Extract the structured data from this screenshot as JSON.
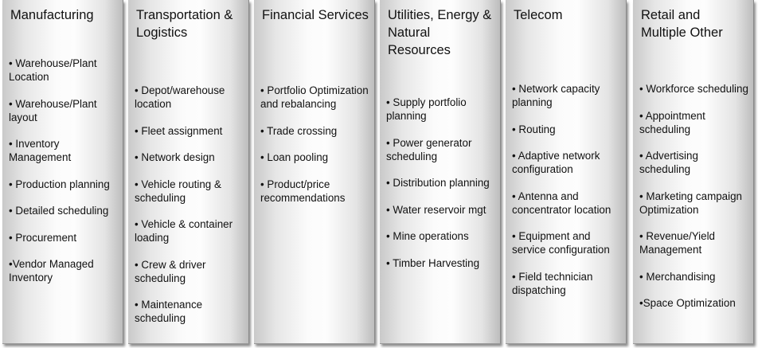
{
  "columns": [
    {
      "title": "Manufacturing",
      "items": [
        "• Warehouse/Plant Location",
        "• Warehouse/Plant layout",
        "• Inventory Management",
        "• Production planning",
        "• Detailed scheduling",
        "•  Procurement",
        "•Vendor Managed Inventory"
      ]
    },
    {
      "title": "Transportation & Logistics",
      "items": [
        "• Depot/warehouse location",
        "• Fleet assignment",
        "• Network design",
        "• Vehicle  routing & scheduling",
        "• Vehicle & container loading",
        "• Crew & driver scheduling",
        "• Maintenance scheduling"
      ]
    },
    {
      "title": "Financial Services",
      "items": [
        "• Portfolio Optimization and rebalancing",
        "• Trade crossing",
        "• Loan pooling",
        "• Product/price recommendations"
      ]
    },
    {
      "title": "Utilities, Energy & Natural Resources",
      "items": [
        "• Supply portfolio planning",
        "• Power generator scheduling",
        "• Distribution planning",
        "• Water reservoir mgt",
        "• Mine operations",
        "• Timber Harvesting"
      ]
    },
    {
      "title": "Telecom",
      "items": [
        "• Network capacity planning",
        "• Routing",
        "• Adaptive network configuration",
        "• Antenna and concentrator location",
        "• Equipment and service configuration",
        "• Field technician dispatching"
      ]
    },
    {
      "title": "Retail and Multiple Other",
      "items": [
        "• Workforce scheduling",
        "• Appointment scheduling",
        "• Advertising scheduling",
        "• Marketing campaign Optimization",
        "• Revenue/Yield Management",
        "• Merchandising",
        "•Space Optimization"
      ]
    }
  ]
}
